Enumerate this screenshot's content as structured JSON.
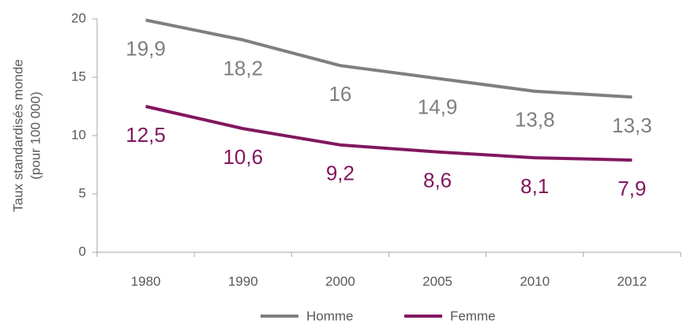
{
  "chart_data": {
    "type": "line",
    "ylabel": [
      "Taux standardisés monde",
      "(pour 100 000)"
    ],
    "categories": [
      "1980",
      "1990",
      "2000",
      "2005",
      "2010",
      "2012"
    ],
    "series": [
      {
        "name": "Homme",
        "color": "#7f7f7f",
        "values": [
          19.9,
          18.2,
          16,
          14.9,
          13.8,
          13.3
        ],
        "value_labels": [
          "19,9",
          "18,2",
          "16",
          "14,9",
          "13,8",
          "13,3"
        ]
      },
      {
        "name": "Femme",
        "color": "#82175f",
        "values": [
          12.5,
          10.6,
          9.2,
          8.6,
          8.1,
          7.9
        ],
        "value_labels": [
          "12,5",
          "10,6",
          "9,2",
          "8,6",
          "8,1",
          "7,9"
        ]
      }
    ],
    "ylim": [
      0,
      20
    ],
    "yticks": [
      0,
      5,
      10,
      15,
      20
    ],
    "legend": "bottom"
  }
}
